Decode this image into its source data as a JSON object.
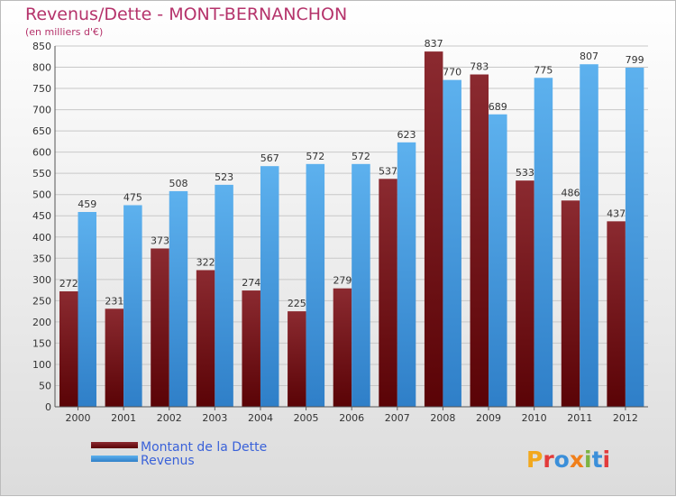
{
  "title": "Revenus/Dette - MONT-BERNANCHON",
  "subtitle": "(en milliers d'€)",
  "logo_text": "Proxiti",
  "chart_data": {
    "type": "bar",
    "title": "Revenus/Dette - MONT-BERNANCHON",
    "subtitle": "(en milliers d'€)",
    "categories": [
      "2000",
      "2001",
      "2002",
      "2003",
      "2004",
      "2005",
      "2006",
      "2007",
      "2008",
      "2009",
      "2010",
      "2011",
      "2012"
    ],
    "series": [
      {
        "name": "Montant de la Dette",
        "values": [
          272,
          231,
          373,
          322,
          274,
          225,
          279,
          537,
          837,
          783,
          533,
          486,
          437
        ],
        "color": "#8b1a1f"
      },
      {
        "name": "Revenus",
        "values": [
          459,
          475,
          508,
          523,
          567,
          572,
          572,
          623,
          770,
          689,
          775,
          807,
          799
        ],
        "color": "#4fa3e6"
      }
    ],
    "ylim": [
      0,
      850
    ],
    "ytick_step": 50,
    "grid": true,
    "legend_position": "bottom-left"
  }
}
